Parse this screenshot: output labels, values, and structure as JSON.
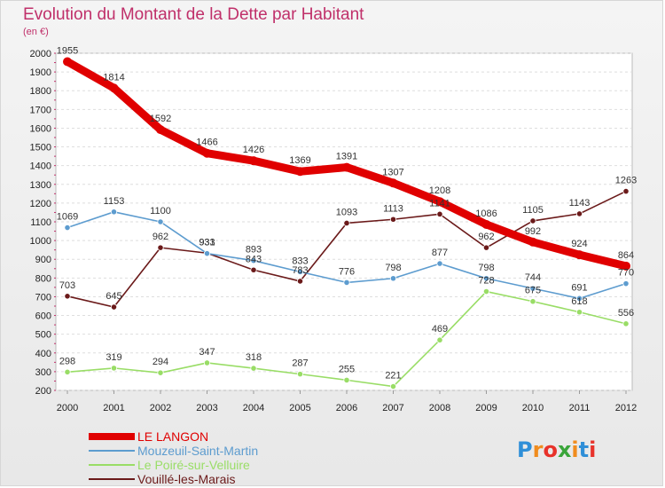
{
  "chart_data": {
    "type": "line",
    "title": "Evolution du Montant de la Dette par Habitant",
    "subtitle": "(en €)",
    "x": [
      "2000",
      "2001",
      "2002",
      "2003",
      "2004",
      "2005",
      "2006",
      "2007",
      "2008",
      "2009",
      "2010",
      "2011",
      "2012"
    ],
    "ylim": [
      200,
      2000
    ],
    "yticks": [
      200,
      300,
      400,
      500,
      600,
      700,
      800,
      900,
      1000,
      1100,
      1200,
      1300,
      1400,
      1500,
      1600,
      1700,
      1800,
      1900,
      2000
    ],
    "grid": true,
    "legend_position": "bottom-left",
    "series": [
      {
        "name": "LE LANGON",
        "color": "#e00000",
        "values": [
          1955,
          1814,
          1592,
          1466,
          1426,
          1369,
          1391,
          1307,
          1208,
          1086,
          992,
          924,
          864
        ]
      },
      {
        "name": "Mouzeuil-Saint-Martin",
        "color": "#5d9ccf",
        "values": [
          1069,
          1153,
          1100,
          931,
          893,
          833,
          776,
          798,
          877,
          798,
          744,
          691,
          770
        ]
      },
      {
        "name": "Le Poiré-sur-Velluire",
        "color": "#99dd66",
        "values": [
          298,
          319,
          294,
          347,
          318,
          287,
          255,
          221,
          469,
          728,
          675,
          618,
          556
        ]
      },
      {
        "name": "Vouillé-les-Marais",
        "color": "#6b1a1a",
        "values": [
          703,
          645,
          962,
          933,
          843,
          783,
          1093,
          1113,
          1141,
          962,
          1105,
          1143,
          1263
        ]
      }
    ]
  },
  "logo": {
    "text": "Proxiti",
    "letter_colors": [
      "#2f8fd8",
      "#f08c1e",
      "#e8322a",
      "#3aa53a",
      "#f08c1e",
      "#2f8fd8",
      "#e8322a"
    ]
  }
}
